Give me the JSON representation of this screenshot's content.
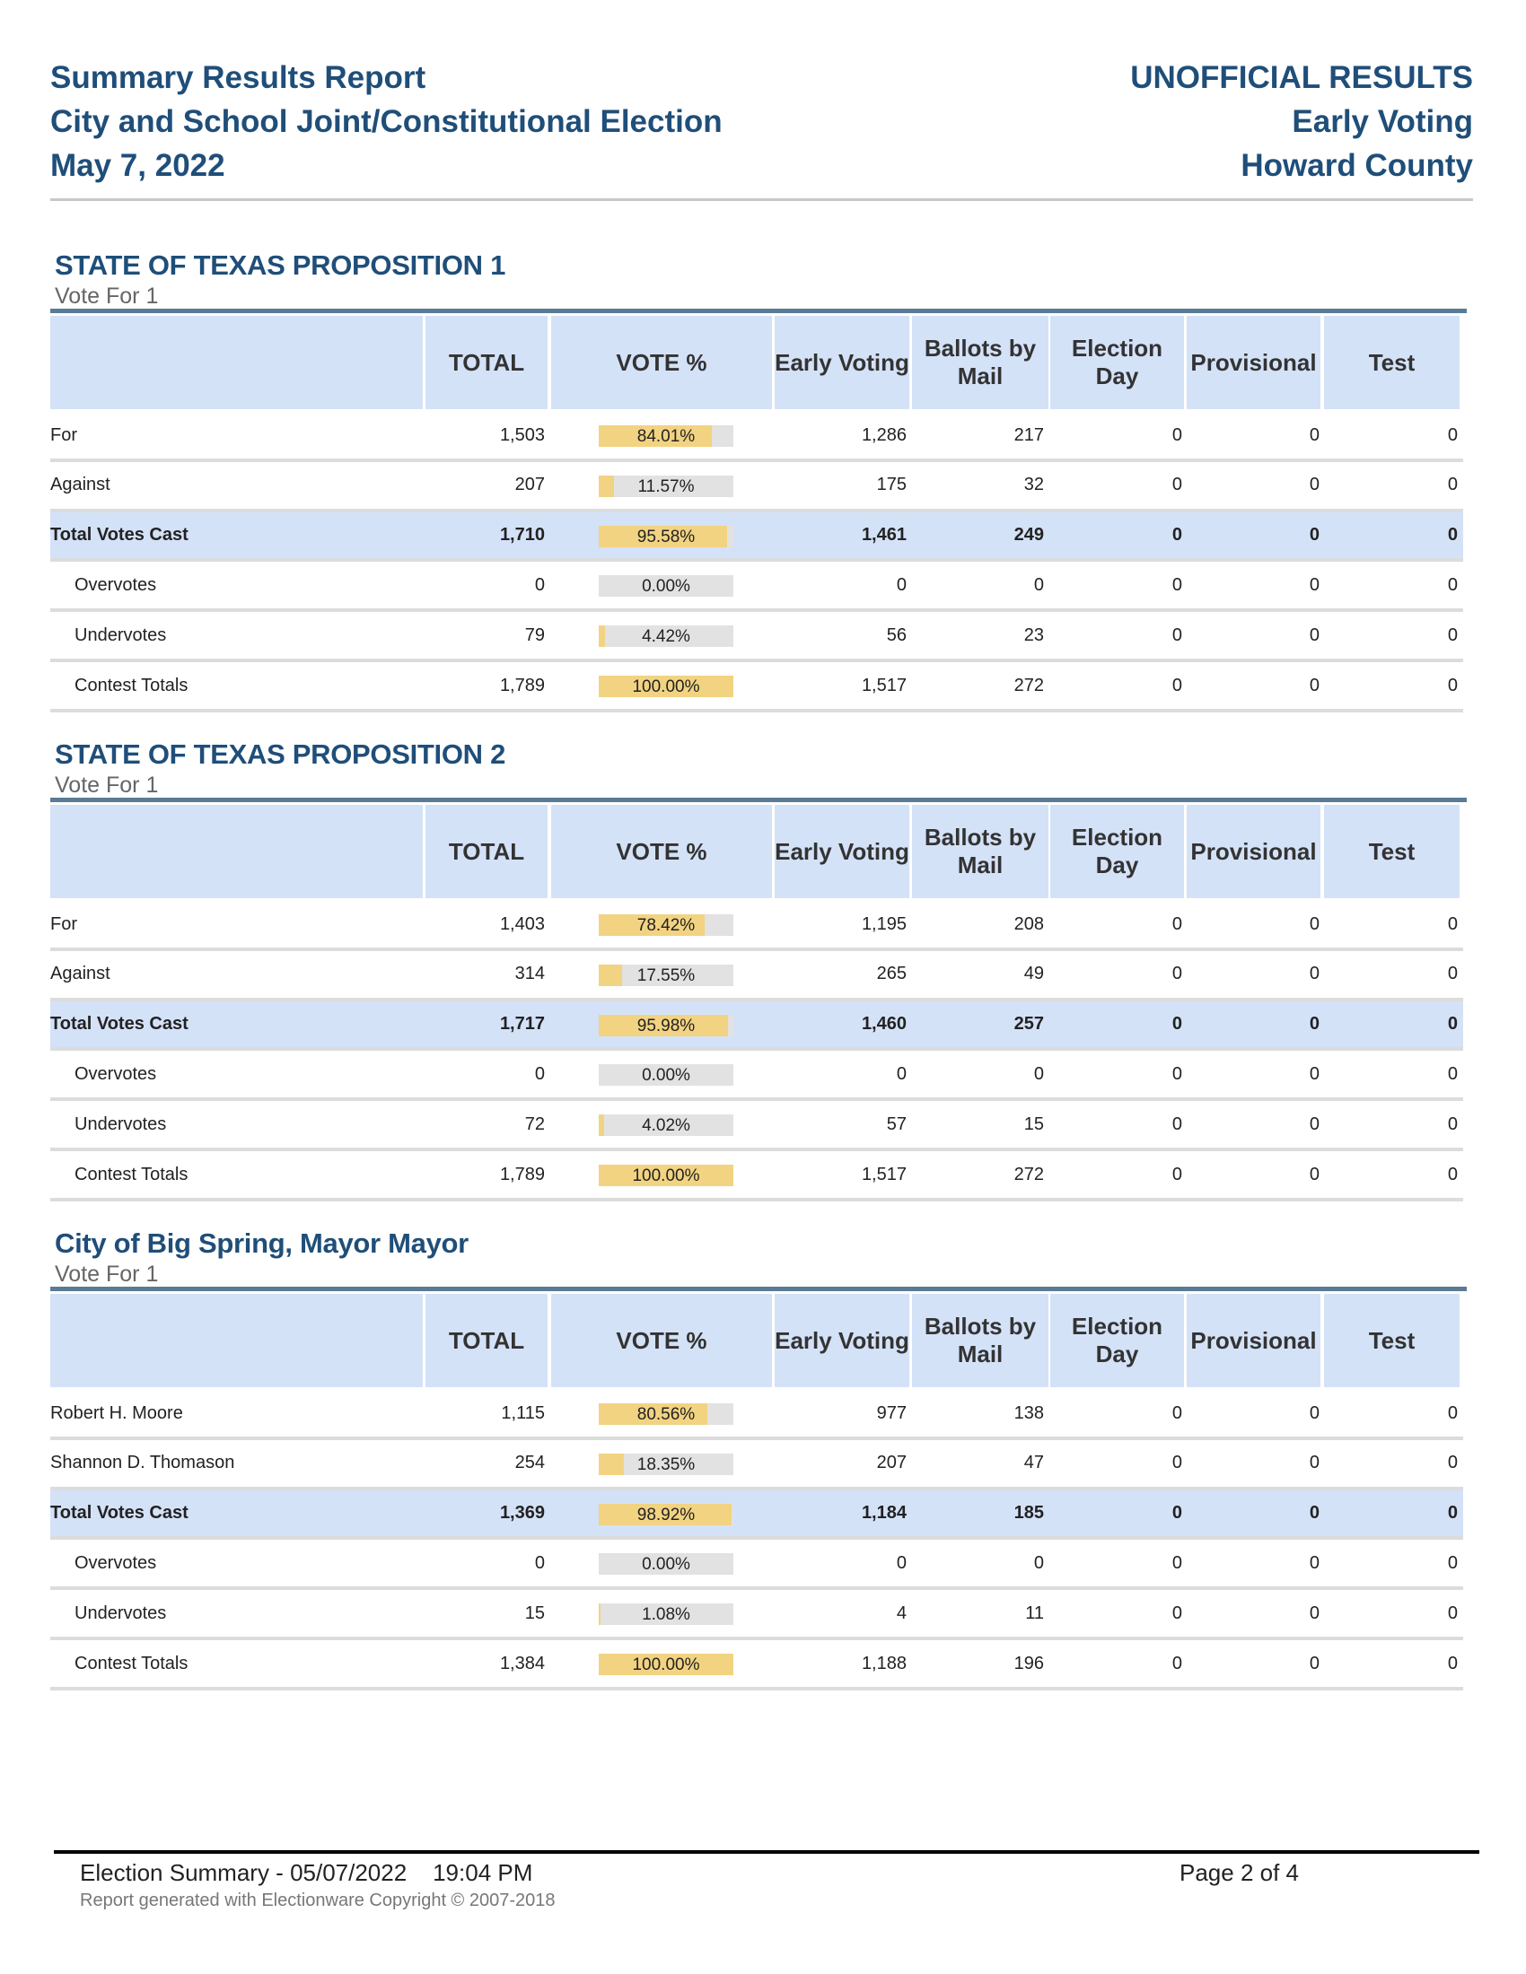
{
  "header": {
    "title": "Summary Results Report",
    "subtitle": "City and School Joint/Constitutional Election",
    "date": "May 7, 2022",
    "status": "UNOFFICIAL RESULTS",
    "type": "Early Voting",
    "county": "Howard County"
  },
  "columns": [
    "",
    "TOTAL",
    "VOTE %",
    "Early Voting",
    "Ballots by Mail",
    "Election Day",
    "Provisional",
    "Test"
  ],
  "contests": [
    {
      "title": "STATE OF TEXAS PROPOSITION 1",
      "vote_for": "Vote For 1",
      "rows": [
        {
          "label": "For",
          "kind": "choice",
          "total": "1,503",
          "pct": "84.01%",
          "pct_value": 84.01,
          "vals": [
            "1,286",
            "217",
            "0",
            "0",
            "0"
          ]
        },
        {
          "label": "Against",
          "kind": "choice",
          "total": "207",
          "pct": "11.57%",
          "pct_value": 11.57,
          "vals": [
            "175",
            "32",
            "0",
            "0",
            "0"
          ]
        },
        {
          "label": "Total Votes Cast",
          "kind": "tvc",
          "total": "1,710",
          "pct": "95.58%",
          "pct_value": 95.58,
          "vals": [
            "1,461",
            "249",
            "0",
            "0",
            "0"
          ]
        },
        {
          "label": "Overvotes",
          "kind": "sub",
          "total": "0",
          "pct": "0.00%",
          "pct_value": 0,
          "vals": [
            "0",
            "0",
            "0",
            "0",
            "0"
          ]
        },
        {
          "label": "Undervotes",
          "kind": "sub",
          "total": "79",
          "pct": "4.42%",
          "pct_value": 4.42,
          "vals": [
            "56",
            "23",
            "0",
            "0",
            "0"
          ]
        },
        {
          "label": "Contest Totals",
          "kind": "sub",
          "total": "1,789",
          "pct": "100.00%",
          "pct_value": 100,
          "vals": [
            "1,517",
            "272",
            "0",
            "0",
            "0"
          ]
        }
      ]
    },
    {
      "title": "STATE OF TEXAS PROPOSITION 2",
      "vote_for": "Vote For 1",
      "rows": [
        {
          "label": "For",
          "kind": "choice",
          "total": "1,403",
          "pct": "78.42%",
          "pct_value": 78.42,
          "vals": [
            "1,195",
            "208",
            "0",
            "0",
            "0"
          ]
        },
        {
          "label": "Against",
          "kind": "choice",
          "total": "314",
          "pct": "17.55%",
          "pct_value": 17.55,
          "vals": [
            "265",
            "49",
            "0",
            "0",
            "0"
          ]
        },
        {
          "label": "Total Votes Cast",
          "kind": "tvc",
          "total": "1,717",
          "pct": "95.98%",
          "pct_value": 95.98,
          "vals": [
            "1,460",
            "257",
            "0",
            "0",
            "0"
          ]
        },
        {
          "label": "Overvotes",
          "kind": "sub",
          "total": "0",
          "pct": "0.00%",
          "pct_value": 0,
          "vals": [
            "0",
            "0",
            "0",
            "0",
            "0"
          ]
        },
        {
          "label": "Undervotes",
          "kind": "sub",
          "total": "72",
          "pct": "4.02%",
          "pct_value": 4.02,
          "vals": [
            "57",
            "15",
            "0",
            "0",
            "0"
          ]
        },
        {
          "label": "Contest Totals",
          "kind": "sub",
          "total": "1,789",
          "pct": "100.00%",
          "pct_value": 100,
          "vals": [
            "1,517",
            "272",
            "0",
            "0",
            "0"
          ]
        }
      ]
    },
    {
      "title": "City of Big Spring, Mayor Mayor",
      "vote_for": "Vote For 1",
      "rows": [
        {
          "label": "Robert H. Moore",
          "kind": "choice",
          "total": "1,115",
          "pct": "80.56%",
          "pct_value": 80.56,
          "vals": [
            "977",
            "138",
            "0",
            "0",
            "0"
          ]
        },
        {
          "label": "Shannon D. Thomason",
          "kind": "choice",
          "total": "254",
          "pct": "18.35%",
          "pct_value": 18.35,
          "vals": [
            "207",
            "47",
            "0",
            "0",
            "0"
          ]
        },
        {
          "label": "Total Votes Cast",
          "kind": "tvc",
          "total": "1,369",
          "pct": "98.92%",
          "pct_value": 98.92,
          "vals": [
            "1,184",
            "185",
            "0",
            "0",
            "0"
          ]
        },
        {
          "label": "Overvotes",
          "kind": "sub",
          "total": "0",
          "pct": "0.00%",
          "pct_value": 0,
          "vals": [
            "0",
            "0",
            "0",
            "0",
            "0"
          ]
        },
        {
          "label": "Undervotes",
          "kind": "sub",
          "total": "15",
          "pct": "1.08%",
          "pct_value": 1.08,
          "vals": [
            "4",
            "11",
            "0",
            "0",
            "0"
          ]
        },
        {
          "label": "Contest Totals",
          "kind": "sub",
          "total": "1,384",
          "pct": "100.00%",
          "pct_value": 100,
          "vals": [
            "1,188",
            "196",
            "0",
            "0",
            "0"
          ]
        }
      ]
    }
  ],
  "footer": {
    "summary": "Election Summary - 05/07/2022    19:04 PM",
    "copyright": "Report generated with Electionware Copyright © 2007-2018",
    "page": "Page 2 of 4"
  }
}
